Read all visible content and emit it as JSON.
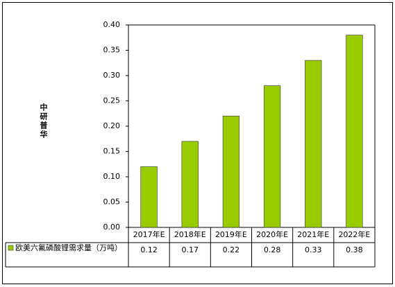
{
  "chart_data": {
    "type": "bar",
    "y_label": "中研普华",
    "categories": [
      "2017年E",
      "2018年E",
      "2019年E",
      "2020年E",
      "2021年E",
      "2022年E"
    ],
    "series": [
      {
        "name": "欧美六氟磷酸锂需求量（万吨）",
        "color": "#99cc00",
        "values": [
          0.12,
          0.17,
          0.22,
          0.28,
          0.33,
          0.38
        ]
      }
    ],
    "ylim": [
      0,
      0.4
    ],
    "yticks": [
      {
        "value": 0,
        "label": "0.00"
      },
      {
        "value": 0.05,
        "label": "0.05"
      },
      {
        "value": 0.1,
        "label": "0.10"
      },
      {
        "value": 0.15,
        "label": "0.15"
      },
      {
        "value": 0.2,
        "label": "0.20"
      },
      {
        "value": 0.25,
        "label": "0.25"
      },
      {
        "value": 0.3,
        "label": "0.30"
      },
      {
        "value": 0.35,
        "label": "0.35"
      },
      {
        "value": 0.4,
        "label": "0.40"
      }
    ],
    "grid": false
  }
}
